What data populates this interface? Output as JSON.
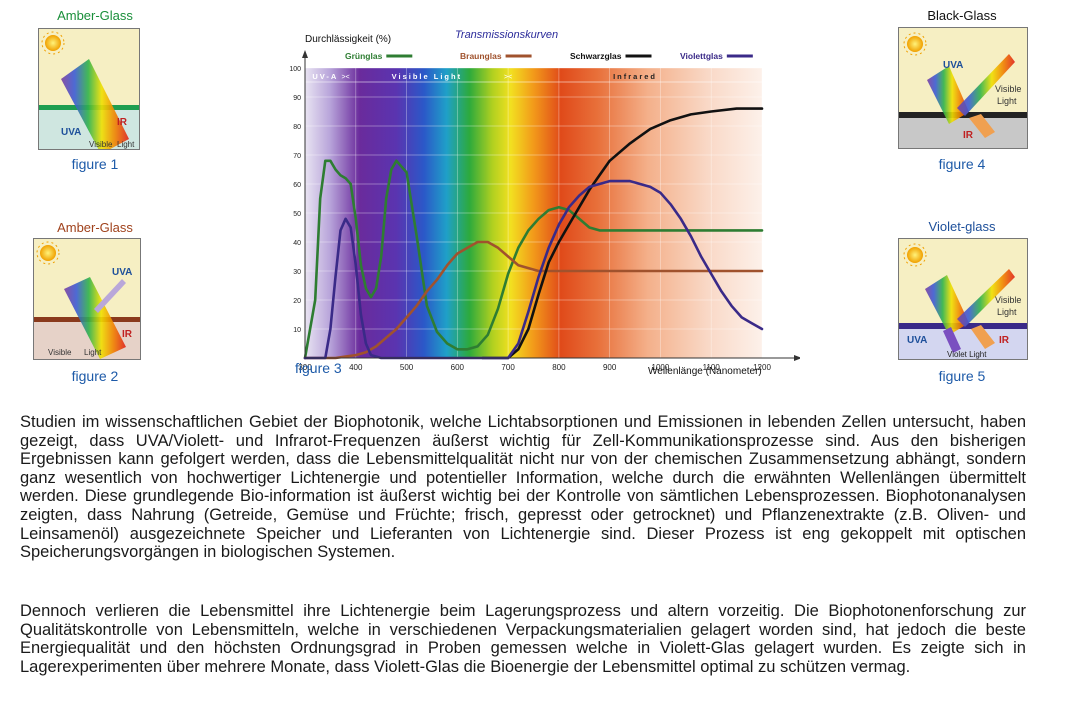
{
  "figures": [
    {
      "title": "Amber-Glass",
      "caption": "figure 1",
      "title_color": "#1a8f3a",
      "labels": {
        "uva": "UVA",
        "ir": "IR",
        "visible": "Visible",
        "light": "Light"
      }
    },
    {
      "title": "Amber-Glass",
      "caption": "figure 2",
      "title_color": "#a0421c",
      "labels": {
        "uva": "UVA",
        "ir": "IR",
        "visible": "Visible",
        "light": "Light"
      }
    },
    {
      "title": "Black-Glass",
      "caption": "figure 4",
      "title_color": "#111111",
      "labels": {
        "uva": "UVA",
        "ir": "IR",
        "visible": "Visible",
        "light": "Light"
      }
    },
    {
      "title": "Violet-glass",
      "caption": "figure 5",
      "title_color": "#1d4f9a",
      "labels": {
        "uva": "UVA",
        "ir": "IR",
        "visible": "Visible",
        "light": "Light",
        "violet": "Violet Light"
      }
    }
  ],
  "chart_caption": "figure 3",
  "chart_data": {
    "type": "line",
    "title": "Transmissionskurven",
    "ylabel": "Durchlässigkeit (%)",
    "xlabel": "Wellenlänge (Nanometer)",
    "xlim": [
      300,
      1200
    ],
    "ylim": [
      0,
      100
    ],
    "x_ticks": [
      "300",
      "400",
      "500",
      "600",
      "700",
      "800",
      "900",
      "1000",
      "1100",
      "1200"
    ],
    "y_ticks": [
      "10",
      "20",
      "30",
      "40",
      "50",
      "60",
      "70",
      "80",
      "90",
      "100"
    ],
    "bands": [
      {
        "label": "UV-A",
        "from": 300,
        "to": 380
      },
      {
        "label": "Visible Light",
        "from": 380,
        "to": 700
      },
      {
        "label": "Infrared",
        "from": 700,
        "to": 1200
      }
    ],
    "band_markers": [
      "><",
      "><"
    ],
    "grid": true,
    "legend_position": "top",
    "series": [
      {
        "name": "Grünglas",
        "color": "#2e7d32",
        "x": [
          300,
          320,
          330,
          340,
          350,
          360,
          370,
          380,
          390,
          400,
          410,
          420,
          430,
          440,
          450,
          460,
          470,
          480,
          500,
          520,
          540,
          560,
          580,
          600,
          620,
          640,
          660,
          680,
          700,
          720,
          740,
          760,
          780,
          800,
          820,
          840,
          860,
          880,
          900,
          1000,
          1100,
          1200
        ],
        "y": [
          0,
          20,
          55,
          68,
          68,
          65,
          63,
          62,
          60,
          48,
          32,
          24,
          21,
          24,
          35,
          55,
          65,
          68,
          64,
          42,
          18,
          9,
          5,
          3,
          3,
          4,
          8,
          17,
          29,
          38,
          44,
          48,
          51,
          52,
          51,
          48,
          45,
          44,
          44,
          44,
          44,
          44
        ]
      },
      {
        "name": "Braunglas",
        "color": "#a0522d",
        "x": [
          300,
          360,
          380,
          400,
          420,
          440,
          460,
          480,
          500,
          520,
          540,
          560,
          580,
          600,
          620,
          640,
          660,
          680,
          700,
          720,
          740,
          760,
          780,
          800,
          1000,
          1200
        ],
        "y": [
          0,
          0,
          0.5,
          1,
          2,
          4,
          7,
          10,
          14,
          18,
          23,
          27,
          32,
          36,
          38,
          40,
          40,
          38,
          35,
          32,
          31,
          30,
          30,
          30,
          30,
          30
        ]
      },
      {
        "name": "Schwarzglas",
        "color": "#111111",
        "x": [
          650,
          700,
          720,
          740,
          760,
          780,
          800,
          820,
          840,
          860,
          880,
          900,
          940,
          980,
          1020,
          1060,
          1100,
          1150,
          1200
        ],
        "y": [
          0,
          0,
          3,
          10,
          22,
          33,
          40,
          46,
          52,
          58,
          63,
          68,
          74,
          79,
          82,
          84,
          85,
          86,
          86
        ]
      },
      {
        "name": "Violettglas",
        "color": "#3a2a88",
        "x": [
          300,
          340,
          350,
          360,
          370,
          380,
          390,
          400,
          410,
          420,
          430,
          450,
          700,
          720,
          740,
          760,
          780,
          800,
          820,
          840,
          860,
          880,
          900,
          920,
          940,
          960,
          980,
          1000,
          1020,
          1040,
          1060,
          1080,
          1100,
          1120,
          1140,
          1160,
          1180,
          1200
        ],
        "y": [
          0,
          0,
          10,
          28,
          44,
          48,
          45,
          32,
          15,
          5,
          1,
          0,
          0,
          5,
          16,
          28,
          38,
          46,
          52,
          56,
          59,
          60,
          61,
          61,
          61,
          60,
          59,
          57,
          53,
          48,
          42,
          35,
          29,
          23,
          18,
          14,
          12,
          10
        ]
      }
    ]
  },
  "paragraphs": [
    "Studien im wissenschaftlichen Gebiet der Biophotonik, welche Lichtabsorptionen und Emissionen in lebenden Zellen untersucht, haben gezeigt, dass UVA/Violett- und Infrarot-Frequenzen äußerst wichtig für Zell-Kommunikationsprozesse sind. Aus den bisherigen Ergebnissen kann gefolgert werden, dass die Lebensmittelqualität nicht nur von der chemischen Zusammensetzung abhängt, sondern ganz wesentlich von hochwertiger Lichtenergie und potentieller Information, welche durch die erwähnten Wellenlängen übermittelt werden. Diese grundlegende Bio-information ist äußerst wichtig bei der Kontrolle von sämtlichen Lebensprozessen. Biophotonanalysen zeigten, dass Nahrung (Getreide, Gemüse und Früchte; frisch, gepresst oder getrocknet) und Pflanzenextrakte (z.B. Oliven- und Leinsamenöl) ausgezeichnete Speicher und Lieferanten von Lichtenergie sind. Dieser Prozess ist eng gekoppelt mit optischen Speicherungsvorgängen in biologischen Systemen.",
    "Dennoch verlieren die Lebensmittel ihre Lichtenergie beim Lagerungsprozess und altern vorzeitig. Die Biophotonenforschung zur Qualitätskontrolle von Lebensmitteln, welche in verschiedenen Verpackungsmaterialien gelagert worden sind, hat jedoch die beste Energiequalität und den höchsten Ordnungsgrad in Proben gemessen welche in Violett-Glas gelagert wurden. Es zeigte sich in Lagerexperimenten über mehrere Monate, dass Violett-Glas die Bioenergie der Lebensmittel optimal zu schützen vermag."
  ]
}
